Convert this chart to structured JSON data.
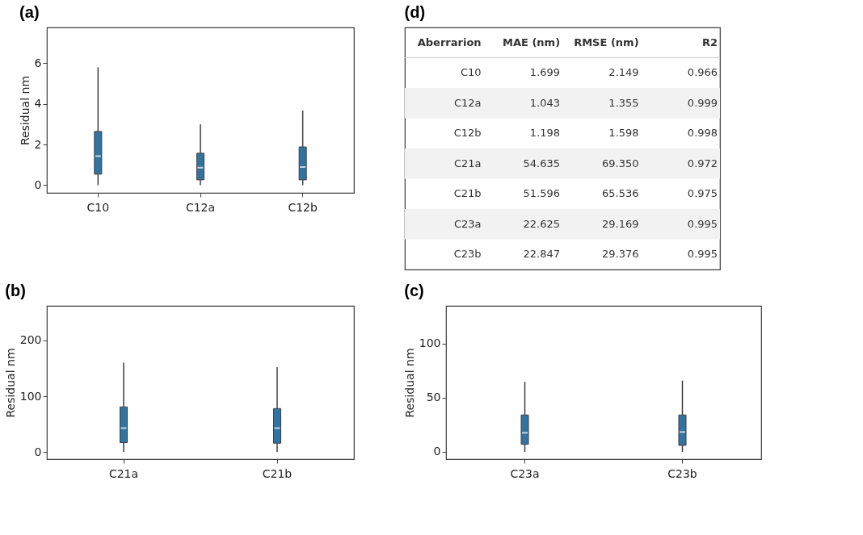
{
  "chart_data": [
    {
      "type": "box",
      "title": "(a)",
      "ylabel": "Residual nm",
      "categories": [
        "C10",
        "C12a",
        "C12b"
      ],
      "ylim": [
        -0.38,
        7.76
      ],
      "yticks": [
        0,
        2,
        4,
        6
      ],
      "grid": false,
      "color": "#3274a1",
      "boxes": [
        {
          "low": 0,
          "q1": 0.54,
          "median": 1.43,
          "q3": 2.64,
          "high": 5.8
        },
        {
          "low": 0,
          "q1": 0.26,
          "median": 0.86,
          "q3": 1.57,
          "high": 3.0
        },
        {
          "low": 0,
          "q1": 0.26,
          "median": 0.89,
          "q3": 1.88,
          "high": 3.67
        }
      ]
    },
    {
      "type": "other",
      "title": "(d)",
      "xlabel": "Aberrarion",
      "categories": [
        "C10",
        "C12a",
        "C12b",
        "C21a",
        "C21b",
        "C23a",
        "C23b"
      ],
      "data_labels": true,
      "series": [
        {
          "name": "MAE (nm)",
          "values": [
            1.699,
            1.043,
            1.198,
            54.635,
            51.596,
            22.625,
            22.847
          ]
        },
        {
          "name": "RMSE (nm)",
          "values": [
            2.149,
            1.355,
            1.598,
            69.35,
            65.536,
            29.169,
            29.376
          ],
          "value_labels": [
            "2.149",
            "1.355",
            "1.598",
            "69.350",
            "65.536",
            "29.169",
            "29.376"
          ]
        },
        {
          "name": "R2",
          "values": [
            0.966,
            0.999,
            0.998,
            0.972,
            0.975,
            0.995,
            0.995
          ]
        }
      ]
    },
    {
      "type": "box",
      "title": "(b)",
      "ylabel": "Residual nm",
      "categories": [
        "C21a",
        "C21b"
      ],
      "ylim": [
        -12.6,
        262
      ],
      "yticks": [
        0,
        100,
        200
      ],
      "grid": false,
      "color": "#3274a1",
      "boxes": [
        {
          "low": 0,
          "q1": 17,
          "median": 43,
          "q3": 81,
          "high": 160
        },
        {
          "low": 0,
          "q1": 16,
          "median": 43,
          "q3": 78,
          "high": 152
        }
      ]
    },
    {
      "type": "box",
      "title": "(c)",
      "ylabel": "Residual nm",
      "categories": [
        "C23a",
        "C23b"
      ],
      "ylim": [
        -6.7,
        134.6
      ],
      "yticks": [
        0,
        50,
        100
      ],
      "grid": false,
      "color": "#3274a1",
      "boxes": [
        {
          "low": 0,
          "q1": 7,
          "median": 17.6,
          "q3": 34,
          "high": 64.6
        },
        {
          "low": 0,
          "q1": 6,
          "median": 18.3,
          "q3": 34,
          "high": 65.7
        }
      ]
    }
  ]
}
